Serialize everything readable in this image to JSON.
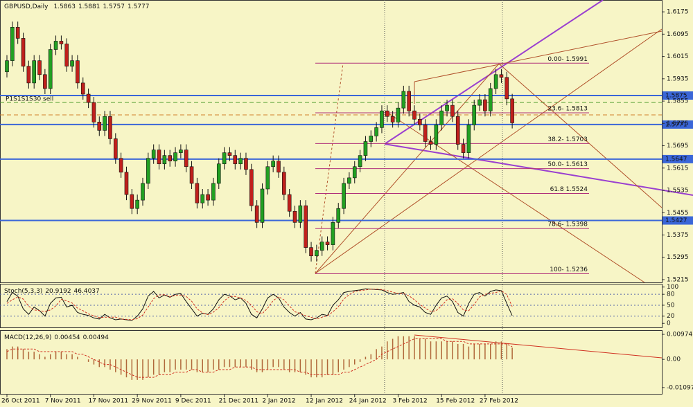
{
  "chart_data": [
    {
      "type": "candlestick",
      "title": "GBPUSD,Daily",
      "categories": [
        "26 Oct 2011",
        null,
        null,
        null,
        null,
        null,
        null,
        null,
        "7 Nov 2011",
        null,
        null,
        null,
        null,
        null,
        null,
        null,
        "17 Nov 2011",
        null,
        null,
        null,
        null,
        null,
        null,
        null,
        "29 Nov 2011",
        null,
        null,
        null,
        null,
        null,
        null,
        null,
        "9 Dec 2011",
        null,
        null,
        null,
        null,
        null,
        null,
        null,
        "21 Dec 2011",
        null,
        null,
        null,
        null,
        null,
        null,
        null,
        "2 Jan 2012",
        null,
        null,
        null,
        null,
        null,
        null,
        null,
        "12 Jan 2012",
        null,
        null,
        null,
        null,
        null,
        null,
        null,
        "24 Jan 2012",
        null,
        null,
        null,
        null,
        null,
        null,
        null,
        "3 Feb 2012",
        null,
        null,
        null,
        null,
        null,
        null,
        null,
        "15 Feb 2012",
        null,
        null,
        null,
        null,
        null,
        null,
        null,
        "27 Feb 2012",
        null,
        null,
        null,
        null,
        null
      ],
      "open": [
        1.596,
        1.6,
        1.612,
        1.608,
        1.598,
        1.592,
        1.6,
        1.595,
        1.59,
        1.604,
        1.607,
        1.606,
        1.598,
        1.6,
        1.592,
        1.588,
        1.585,
        1.578,
        1.575,
        1.58,
        1.572,
        1.565,
        1.56,
        1.552,
        1.547,
        1.55,
        1.556,
        1.565,
        1.568,
        1.563,
        1.566,
        1.564,
        1.567,
        1.568,
        1.562,
        1.556,
        1.549,
        1.552,
        1.55,
        1.556,
        1.563,
        1.567,
        1.566,
        1.563,
        1.565,
        1.561,
        1.548,
        1.542,
        1.554,
        1.562,
        1.564,
        1.56,
        1.552,
        1.546,
        1.542,
        1.548,
        1.533,
        1.53,
        1.532,
        1.535,
        1.534,
        1.542,
        1.547,
        1.556,
        1.558,
        1.562,
        1.566,
        1.571,
        1.573,
        1.576,
        1.582,
        1.58,
        1.578,
        1.583,
        1.589,
        1.582,
        1.579,
        1.577,
        1.571,
        1.57,
        1.577,
        1.582,
        1.584,
        1.58,
        1.57,
        1.567,
        1.577,
        1.584,
        1.586,
        1.582,
        1.59,
        1.595,
        1.594,
        1.5863
      ],
      "high": [
        1.602,
        1.614,
        1.614,
        1.61,
        1.6,
        1.602,
        1.602,
        1.597,
        1.606,
        1.609,
        1.609,
        1.608,
        1.602,
        1.602,
        1.594,
        1.59,
        1.587,
        1.58,
        1.582,
        1.582,
        1.574,
        1.567,
        1.562,
        1.554,
        1.552,
        1.558,
        1.567,
        1.57,
        1.57,
        1.568,
        1.568,
        1.569,
        1.57,
        1.57,
        1.564,
        1.558,
        1.554,
        1.554,
        1.558,
        1.565,
        1.569,
        1.569,
        1.568,
        1.567,
        1.567,
        1.563,
        1.55,
        1.556,
        1.564,
        1.566,
        1.566,
        1.562,
        1.554,
        1.548,
        1.55,
        1.55,
        1.535,
        1.534,
        1.537,
        1.537,
        1.544,
        1.549,
        1.558,
        1.56,
        1.564,
        1.568,
        1.573,
        1.575,
        1.578,
        1.584,
        1.584,
        1.582,
        1.585,
        1.591,
        1.591,
        1.584,
        1.581,
        1.579,
        1.573,
        1.579,
        1.584,
        1.586,
        1.586,
        1.582,
        1.572,
        1.579,
        1.586,
        1.588,
        1.588,
        1.592,
        1.597,
        1.597,
        1.596,
        1.5881
      ],
      "low": [
        1.594,
        1.598,
        1.606,
        1.596,
        1.59,
        1.59,
        1.593,
        1.588,
        1.588,
        1.602,
        1.604,
        1.596,
        1.596,
        1.59,
        1.586,
        1.583,
        1.576,
        1.573,
        1.573,
        1.57,
        1.563,
        1.558,
        1.55,
        1.545,
        1.545,
        1.548,
        1.554,
        1.563,
        1.561,
        1.561,
        1.562,
        1.562,
        1.565,
        1.56,
        1.554,
        1.547,
        1.547,
        1.548,
        1.548,
        1.554,
        1.561,
        1.564,
        1.561,
        1.561,
        1.559,
        1.546,
        1.54,
        1.54,
        1.552,
        1.56,
        1.558,
        1.55,
        1.544,
        1.54,
        1.54,
        1.531,
        1.528,
        1.528,
        1.53,
        1.532,
        1.532,
        1.54,
        1.545,
        1.554,
        1.556,
        1.56,
        1.564,
        1.569,
        1.571,
        1.574,
        1.578,
        1.576,
        1.576,
        1.581,
        1.58,
        1.577,
        1.575,
        1.569,
        1.568,
        1.568,
        1.575,
        1.58,
        1.578,
        1.568,
        1.565,
        1.565,
        1.575,
        1.582,
        1.58,
        1.58,
        1.588,
        1.592,
        1.584,
        1.5757
      ],
      "close": [
        1.6,
        1.612,
        1.608,
        1.598,
        1.592,
        1.6,
        1.595,
        1.59,
        1.604,
        1.607,
        1.606,
        1.598,
        1.6,
        1.592,
        1.588,
        1.585,
        1.578,
        1.575,
        1.58,
        1.572,
        1.565,
        1.56,
        1.552,
        1.547,
        1.55,
        1.556,
        1.565,
        1.568,
        1.563,
        1.566,
        1.564,
        1.567,
        1.568,
        1.562,
        1.556,
        1.549,
        1.552,
        1.55,
        1.556,
        1.563,
        1.567,
        1.566,
        1.563,
        1.565,
        1.561,
        1.548,
        1.542,
        1.554,
        1.562,
        1.564,
        1.56,
        1.552,
        1.546,
        1.542,
        1.548,
        1.533,
        1.53,
        1.532,
        1.535,
        1.534,
        1.542,
        1.547,
        1.556,
        1.558,
        1.562,
        1.566,
        1.571,
        1.573,
        1.576,
        1.582,
        1.58,
        1.578,
        1.583,
        1.589,
        1.582,
        1.579,
        1.577,
        1.571,
        1.57,
        1.577,
        1.582,
        1.584,
        1.58,
        1.57,
        1.567,
        1.577,
        1.584,
        1.586,
        1.582,
        1.59,
        1.595,
        1.594,
        1.5863,
        1.5777
      ],
      "up_color": "#22a022",
      "down_color": "#c0201c",
      "ylim": [
        1.5205,
        1.6215
      ],
      "yticks": [
        1.6175,
        1.6095,
        1.6015,
        1.5935,
        1.5855,
        1.5775,
        1.5695,
        1.5615,
        1.5535,
        1.5455,
        1.5375,
        1.5295,
        1.5215
      ],
      "hlines": [
        1.5875,
        1.5771,
        1.5647,
        1.5427
      ],
      "hline_color": "#3a66d8",
      "fib_levels": [
        {
          "value": 1.5991,
          "label": "0.00- 1.5991"
        },
        {
          "value": 1.5813,
          "label": "23.6- 1.5813"
        },
        {
          "value": 1.5703,
          "label": "38.2- 1.5703"
        },
        {
          "value": 1.5613,
          "label": "50.0- 1.5613"
        },
        {
          "value": 1.5524,
          "label": "61.8 1.5524"
        },
        {
          "value": 1.5398,
          "label": "78.6- 1.5398"
        },
        {
          "value": 1.5236,
          "label": "100- 1.5236"
        }
      ],
      "fib_color": "#b0307a",
      "annotation": "P1S1S1S30 sell"
    },
    {
      "type": "line",
      "title": "Stoch(5,3,3)",
      "series": [
        {
          "color": "#111111",
          "values": [
            60,
            85,
            75,
            40,
            25,
            45,
            35,
            20,
            55,
            70,
            72,
            45,
            50,
            30,
            25,
            22,
            15,
            12,
            25,
            15,
            10,
            12,
            10,
            8,
            20,
            40,
            75,
            88,
            70,
            78,
            72,
            80,
            82,
            60,
            40,
            20,
            28,
            25,
            40,
            65,
            80,
            76,
            65,
            70,
            55,
            25,
            15,
            40,
            70,
            80,
            70,
            45,
            30,
            20,
            30,
            12,
            10,
            15,
            25,
            22,
            50,
            65,
            85,
            88,
            90,
            92,
            95,
            94,
            93,
            92,
            85,
            80,
            82,
            85,
            60,
            50,
            45,
            30,
            25,
            50,
            70,
            75,
            60,
            30,
            20,
            55,
            80,
            85,
            75,
            88,
            92,
            90,
            55,
            20.9192
          ]
        },
        {
          "color": "#d03020",
          "dashed": true,
          "values": [
            55,
            65,
            73,
            67,
            47,
            37,
            35,
            33,
            37,
            48,
            66,
            62,
            56,
            42,
            35,
            26,
            21,
            16,
            17,
            17,
            17,
            12,
            11,
            10,
            13,
            23,
            45,
            68,
            78,
            79,
            73,
            77,
            78,
            74,
            61,
            40,
            29,
            24,
            31,
            43,
            62,
            74,
            74,
            70,
            63,
            50,
            32,
            27,
            42,
            63,
            73,
            65,
            48,
            32,
            27,
            21,
            17,
            12,
            17,
            21,
            32,
            46,
            67,
            79,
            88,
            90,
            92,
            94,
            94,
            93,
            90,
            86,
            82,
            82,
            76,
            65,
            52,
            42,
            33,
            35,
            48,
            65,
            68,
            55,
            37,
            35,
            52,
            73,
            80,
            83,
            85,
            90,
            79,
            46.4037
          ]
        }
      ],
      "ylim": [
        -11,
        107
      ],
      "yticks": [
        100,
        80,
        50,
        20,
        0
      ],
      "grid_at": [
        80,
        50,
        20
      ]
    },
    {
      "type": "bar",
      "title": "MACD(12,26,9)",
      "series": [
        {
          "color": "#b0683a",
          "values": [
            0.004,
            0.005,
            0.005,
            0.004,
            0.003,
            0.003,
            0.002,
            0.001,
            0.002,
            0.003,
            0.003,
            0.002,
            0.002,
            0.001,
            0,
            -0.001,
            -0.002,
            -0.003,
            -0.003,
            -0.004,
            -0.005,
            -0.006,
            -0.007,
            -0.008,
            -0.008,
            -0.008,
            -0.007,
            -0.006,
            -0.006,
            -0.005,
            -0.005,
            -0.004,
            -0.004,
            -0.004,
            -0.004,
            -0.005,
            -0.005,
            -0.005,
            -0.004,
            -0.004,
            -0.003,
            -0.003,
            -0.003,
            -0.003,
            -0.003,
            -0.004,
            -0.005,
            -0.005,
            -0.004,
            -0.003,
            -0.003,
            -0.004,
            -0.005,
            -0.005,
            -0.005,
            -0.006,
            -0.007,
            -0.007,
            -0.007,
            -0.006,
            -0.006,
            -0.005,
            -0.004,
            -0.003,
            -0.002,
            -0.001,
            0.001,
            0.002,
            0.004,
            0.005,
            0.007,
            0.008,
            0.009,
            0.009,
            0.009,
            0.009,
            0.008,
            0.008,
            0.007,
            0.007,
            0.007,
            0.007,
            0.007,
            0.006,
            0.006,
            0.005,
            0.006,
            0.006,
            0.006,
            0.006,
            0.007,
            0.007,
            0.006,
            0.00454
          ]
        },
        {
          "color": "#d03020",
          "dashed": true,
          "values": [
            0.003,
            0.004,
            0.004,
            0.004,
            0.004,
            0.004,
            0.003,
            0.003,
            0.003,
            0.003,
            0.003,
            0.003,
            0.003,
            0.002,
            0.002,
            0.001,
            0,
            -0.001,
            -0.002,
            -0.002,
            -0.003,
            -0.004,
            -0.005,
            -0.006,
            -0.007,
            -0.007,
            -0.007,
            -0.007,
            -0.006,
            -0.006,
            -0.006,
            -0.005,
            -0.005,
            -0.005,
            -0.004,
            -0.004,
            -0.005,
            -0.005,
            -0.005,
            -0.004,
            -0.004,
            -0.004,
            -0.003,
            -0.003,
            -0.003,
            -0.003,
            -0.004,
            -0.004,
            -0.004,
            -0.004,
            -0.004,
            -0.004,
            -0.004,
            -0.004,
            -0.005,
            -0.005,
            -0.006,
            -0.006,
            -0.006,
            -0.006,
            -0.006,
            -0.006,
            -0.005,
            -0.005,
            -0.004,
            -0.003,
            -0.002,
            -0.001,
            0,
            0.002,
            0.003,
            0.004,
            0.005,
            0.006,
            0.007,
            0.008,
            0.008,
            0.008,
            0.008,
            0.008,
            0.008,
            0.007,
            0.007,
            0.007,
            0.007,
            0.006,
            0.006,
            0.006,
            0.006,
            0.006,
            0.006,
            0.006,
            0.006,
            0.00494
          ]
        }
      ],
      "ylim": [
        -0.0137,
        0.0111
      ],
      "yticks": [
        0.00974,
        {
          "value": 0,
          "label": "0.00"
        },
        -0.01097
      ]
    }
  ]
}
